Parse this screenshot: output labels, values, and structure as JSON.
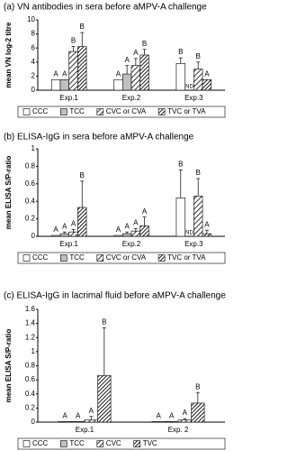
{
  "chart_data": [
    {
      "type": "bar",
      "title": "(a) VN antibodies in sera before aMPV-A challenge",
      "y_label": "mean VN log-2 titre",
      "categories": [
        "Exp.1",
        "Exp.2",
        "Exp.3"
      ],
      "ylim": [
        0,
        10
      ],
      "yticks": [
        0,
        2,
        4,
        6,
        8,
        10
      ],
      "series": [
        {
          "name": "CCC",
          "color": "#ffffff",
          "hatch": "none",
          "values": [
            1.5,
            1.5,
            3.8
          ],
          "errors": [
            null,
            null,
            0.8
          ],
          "letters": [
            "A",
            "A",
            "B"
          ]
        },
        {
          "name": "TCC",
          "color": "#c0c0c0",
          "hatch": "none",
          "values": [
            1.5,
            2.3,
            null
          ],
          "errors": [
            null,
            1.2,
            null
          ],
          "letters": [
            "A",
            "A",
            "ND"
          ]
        },
        {
          "name": "CVC or CVA",
          "color": "#ffffff",
          "hatch": "sparse",
          "values": [
            5.5,
            3.5,
            3
          ],
          "errors": [
            0.7,
            1,
            1
          ],
          "letters": [
            "B",
            "A",
            "B"
          ]
        },
        {
          "name": "TVC or TVA",
          "color": "#ffffff",
          "hatch": "dense",
          "values": [
            6.2,
            5,
            1.5
          ],
          "errors": [
            2,
            0.8,
            null
          ],
          "letters": [
            "B",
            "B",
            "A"
          ]
        }
      ]
    },
    {
      "type": "bar",
      "title": "(b) ELISA-IgG in sera before aMPV-A challenge",
      "y_label": "mean ELISA S/P-ratio",
      "categories": [
        "Exp.1",
        "Exp.2",
        "Exp.3"
      ],
      "ylim": [
        0,
        1
      ],
      "yticks": [
        0,
        0.2,
        0.4,
        0.6,
        0.8,
        1
      ],
      "series": [
        {
          "name": "CCC",
          "color": "#ffffff",
          "hatch": "none",
          "values": [
            0.01,
            0.01,
            0.44
          ],
          "errors": [
            null,
            null,
            0.32
          ],
          "letters": [
            "A",
            "A",
            "B"
          ]
        },
        {
          "name": "TCC",
          "color": "#c0c0c0",
          "hatch": "none",
          "values": [
            0.03,
            0.03,
            null
          ],
          "errors": [
            0.02,
            0.02,
            null
          ],
          "letters": [
            "A",
            "A",
            "ND"
          ]
        },
        {
          "name": "CVC or CVA",
          "color": "#ffffff",
          "hatch": "sparse",
          "values": [
            0.05,
            0.06,
            0.46
          ],
          "errors": [
            0.03,
            0.03,
            0.2
          ],
          "letters": [
            "A",
            "A",
            "B"
          ]
        },
        {
          "name": "TVC or TVA",
          "color": "#ffffff",
          "hatch": "dense",
          "values": [
            0.33,
            0.12,
            0.03
          ],
          "errors": [
            0.3,
            0.1,
            0.04
          ],
          "letters": [
            "B",
            "A",
            "A"
          ]
        }
      ]
    },
    {
      "type": "bar",
      "title": "(c) ELISA-IgG in lacrimal fluid before aMPV-A challenge",
      "y_label": "mean ELISA S/P-ratio",
      "categories": [
        "Exp.1",
        "Exp. 2"
      ],
      "ylim": [
        0,
        1.6
      ],
      "yticks": [
        0,
        0.2,
        0.4,
        0.6,
        0.8,
        1,
        1.2,
        1.4,
        1.6
      ],
      "series": [
        {
          "name": "CCC",
          "color": "#ffffff",
          "hatch": "none",
          "values": [
            0.01,
            0.01
          ],
          "errors": [
            null,
            null
          ],
          "letters": [
            "A",
            "A"
          ]
        },
        {
          "name": "TCC",
          "color": "#c0c0c0",
          "hatch": "none",
          "values": [
            0.01,
            0.01
          ],
          "errors": [
            null,
            null
          ],
          "letters": [
            "A",
            "A"
          ]
        },
        {
          "name": "CVC",
          "color": "#ffffff",
          "hatch": "sparse",
          "values": [
            0.03,
            0.03
          ],
          "errors": [
            0.05,
            0.02
          ],
          "letters": [
            "A",
            "A"
          ]
        },
        {
          "name": "TVC",
          "color": "#ffffff",
          "hatch": "dense",
          "values": [
            0.66,
            0.27
          ],
          "errors": [
            0.68,
            0.15
          ],
          "letters": [
            "B",
            "B"
          ]
        }
      ]
    }
  ]
}
